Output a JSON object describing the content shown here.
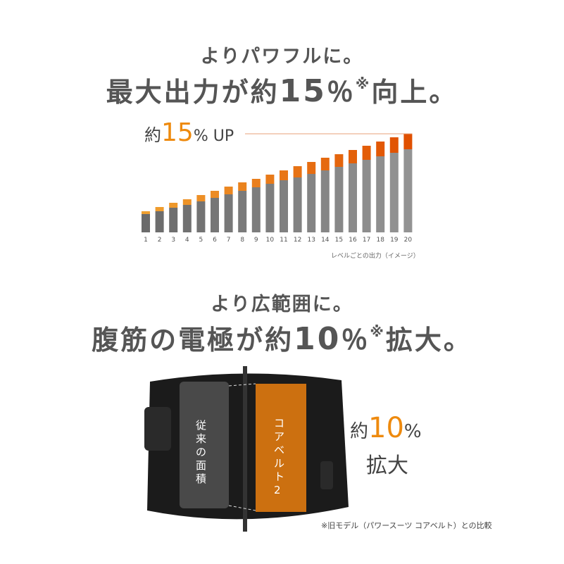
{
  "section1": {
    "subtitle": "よりパワフルに。",
    "title_pre": "最大出力が約",
    "title_num": "15",
    "title_pct": "％",
    "title_mark": "※",
    "title_post": "向上。"
  },
  "chart_data": {
    "type": "bar",
    "stacked": true,
    "title": "",
    "headline_pre": "約",
    "headline_num": "15",
    "headline_post": "% UP",
    "categories": [
      "1",
      "2",
      "3",
      "4",
      "5",
      "6",
      "7",
      "8",
      "9",
      "10",
      "11",
      "12",
      "13",
      "14",
      "15",
      "16",
      "17",
      "18",
      "19",
      "20"
    ],
    "series": [
      {
        "values": [
          26,
          30,
          35,
          39,
          44,
          49,
          54,
          59,
          64,
          69,
          74,
          78,
          83,
          88,
          93,
          98,
          103,
          108,
          113,
          118
        ]
      },
      {
        "values": [
          4,
          6,
          7,
          8,
          9,
          10,
          11,
          12,
          12,
          13,
          14,
          16,
          17,
          18,
          18,
          19,
          20,
          21,
          22,
          22
        ]
      }
    ],
    "colors": {
      "base_low": "#6b6b6b",
      "base_high": "#939393",
      "increase_low": "#f0a030",
      "increase_high": "#e05000",
      "reference_line": "#e8a27a"
    },
    "xlabel": "レベルごとの出力（イメージ）",
    "ylabel": "",
    "grid": false
  },
  "section2": {
    "subtitle": "より広範囲に。",
    "title_pre": "腹筋の電極が約",
    "title_num": "10",
    "title_pct": "％",
    "title_mark": "※",
    "title_post": "拡大。"
  },
  "belt": {
    "old_label": "従来の面積",
    "new_label": "コアベルト2",
    "side_pre": "約",
    "side_num": "10",
    "side_pct": "%",
    "side_post": "拡大"
  },
  "footnote": "※旧モデル（パワースーツ コアベルト）との比較"
}
